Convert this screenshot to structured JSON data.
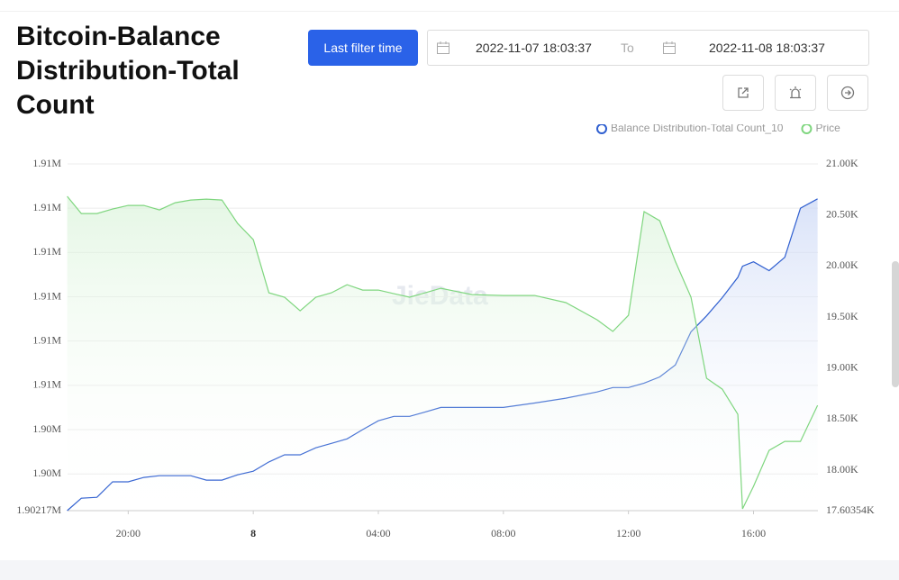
{
  "header": {
    "title": "Bitcoin-Balance Distribution-Total Count",
    "filter_button": "Last filter time",
    "date_from": "2022-11-07 18:03:37",
    "date_separator": "To",
    "date_to": "2022-11-08 18:03:37"
  },
  "chart_data": {
    "type": "line",
    "watermark": "JieData",
    "x": [
      "2022-11-07 18:03",
      "2022-11-07 18:30",
      "2022-11-07 19:00",
      "2022-11-07 19:30",
      "2022-11-07 20:00",
      "2022-11-07 20:30",
      "2022-11-07 21:00",
      "2022-11-07 21:30",
      "2022-11-07 22:00",
      "2022-11-07 22:30",
      "2022-11-07 23:00",
      "2022-11-07 23:30",
      "2022-11-08 00:00",
      "2022-11-08 00:30",
      "2022-11-08 01:00",
      "2022-11-08 01:30",
      "2022-11-08 02:00",
      "2022-11-08 02:30",
      "2022-11-08 03:00",
      "2022-11-08 03:30",
      "2022-11-08 04:00",
      "2022-11-08 04:30",
      "2022-11-08 05:00",
      "2022-11-08 05:30",
      "2022-11-08 06:00",
      "2022-11-08 07:00",
      "2022-11-08 08:00",
      "2022-11-08 09:00",
      "2022-11-08 10:00",
      "2022-11-08 11:00",
      "2022-11-08 11:30",
      "2022-11-08 12:00",
      "2022-11-08 12:30",
      "2022-11-08 13:00",
      "2022-11-08 13:30",
      "2022-11-08 14:00",
      "2022-11-08 14:30",
      "2022-11-08 15:00",
      "2022-11-08 15:30",
      "2022-11-08 15:39",
      "2022-11-08 16:00",
      "2022-11-08 16:30",
      "2022-11-08 17:00",
      "2022-11-08 17:30",
      "2022-11-08 18:03"
    ],
    "xlim": [
      "2022-11-07 18:03:37",
      "2022-11-08 18:03:37"
    ],
    "xticks": [
      {
        "value": "2022-11-07 20:00",
        "label": "20:00"
      },
      {
        "value": "2022-11-08 00:00",
        "label": "8"
      },
      {
        "value": "2022-11-08 04:00",
        "label": "04:00"
      },
      {
        "value": "2022-11-08 08:00",
        "label": "08:00"
      },
      {
        "value": "2022-11-08 12:00",
        "label": "12:00"
      },
      {
        "value": "2022-11-08 16:00",
        "label": "16:00"
      }
    ],
    "ylim": [
      1902170,
      1910000
    ],
    "yticks": [
      {
        "value": 1902170,
        "label": "1.90217M"
      },
      {
        "value": 1903000,
        "label": "1.90M"
      },
      {
        "value": 1904000,
        "label": "1.90M"
      },
      {
        "value": 1905000,
        "label": "1.91M"
      },
      {
        "value": 1906000,
        "label": "1.91M"
      },
      {
        "value": 1907000,
        "label": "1.91M"
      },
      {
        "value": 1908000,
        "label": "1.91M"
      },
      {
        "value": 1909000,
        "label": "1.91M"
      },
      {
        "value": 1910000,
        "label": "1.91M"
      }
    ],
    "y2lim": [
      17603.54,
      21000
    ],
    "y2ticks": [
      {
        "value": 17603.54,
        "label": "17.60354K"
      },
      {
        "value": 18000,
        "label": "18.00K"
      },
      {
        "value": 18500,
        "label": "18.50K"
      },
      {
        "value": 19000,
        "label": "19.00K"
      },
      {
        "value": 19500,
        "label": "19.50K"
      },
      {
        "value": 20000,
        "label": "20.00K"
      },
      {
        "value": 20500,
        "label": "20.50K"
      },
      {
        "value": 21000,
        "label": "21.00K"
      }
    ],
    "grid": true,
    "legend": "top-right",
    "series": [
      {
        "name": "Balance Distribution-Total Count_10",
        "color": "#2f5fd0",
        "axis": "y",
        "values": [
          1902170,
          1902450,
          1902470,
          1902820,
          1902820,
          1902920,
          1902960,
          1902960,
          1902960,
          1902860,
          1902860,
          1902980,
          1903060,
          1903270,
          1903430,
          1903430,
          1903590,
          1903690,
          1903790,
          1904000,
          1904200,
          1904300,
          1904300,
          1904400,
          1904500,
          1904500,
          1904500,
          1904600,
          1904710,
          1904850,
          1904950,
          1904950,
          1905050,
          1905190,
          1905460,
          1906210,
          1906570,
          1906980,
          1907440,
          1907690,
          1907790,
          1907590,
          1907890,
          1909000,
          1909210
        ]
      },
      {
        "name": "Price",
        "color": "#7fd67f",
        "axis": "y2",
        "values": [
          20682,
          20514,
          20514,
          20558,
          20593,
          20593,
          20549,
          20620,
          20646,
          20655,
          20646,
          20417,
          20258,
          19738,
          19694,
          19561,
          19694,
          19738,
          19817,
          19764,
          19764,
          19729,
          19694,
          19738,
          19782,
          19720,
          19711,
          19711,
          19641,
          19473,
          19359,
          19517,
          20532,
          20443,
          20046,
          19694,
          18900,
          18794,
          18547,
          17621,
          17842,
          18194,
          18282,
          18282,
          18635
        ]
      }
    ]
  }
}
